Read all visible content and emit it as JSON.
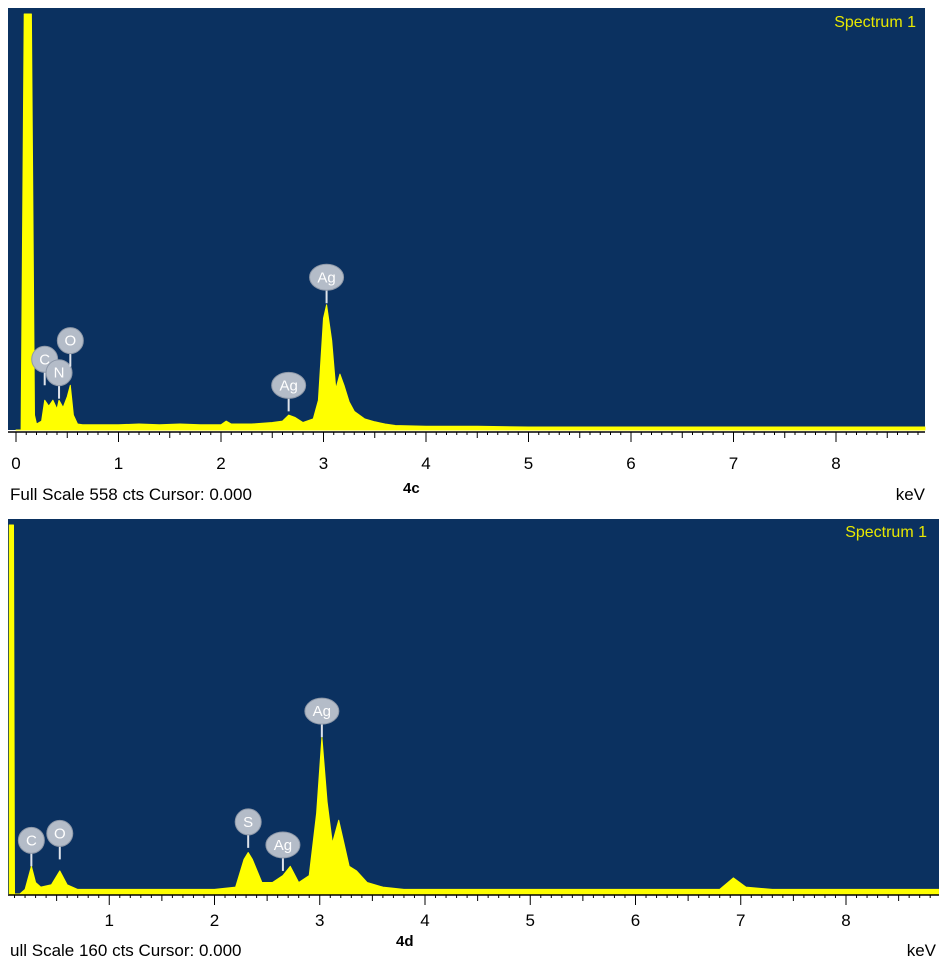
{
  "colors": {
    "plot_background": "#0b3160",
    "spectrum_fill": "#ffff00",
    "title_text": "#e8e800",
    "badge_fill": "#b4bcc8",
    "badge_text": "#ffffff",
    "axis_bg": "#ffffff"
  },
  "chart_data": [
    {
      "type": "area",
      "panel_id": "4c",
      "title": "Spectrum 1",
      "footer": "Full Scale 558 cts Cursor: 0.000",
      "xlabel": "keV",
      "xlim": [
        0,
        8.9
      ],
      "ylim": [
        0,
        558
      ],
      "x_ticks": [
        "0",
        "1",
        "2",
        "3",
        "4",
        "5",
        "6",
        "7",
        "8"
      ],
      "x": [
        0.0,
        0.05,
        0.08,
        0.1,
        0.12,
        0.15,
        0.18,
        0.2,
        0.25,
        0.28,
        0.32,
        0.36,
        0.4,
        0.42,
        0.46,
        0.5,
        0.53,
        0.56,
        0.6,
        0.65,
        0.7,
        0.8,
        1.0,
        1.2,
        1.4,
        1.6,
        1.8,
        2.0,
        2.05,
        2.1,
        2.3,
        2.5,
        2.6,
        2.66,
        2.72,
        2.8,
        2.9,
        2.95,
        3.0,
        3.03,
        3.08,
        3.12,
        3.16,
        3.2,
        3.25,
        3.3,
        3.4,
        3.5,
        3.6,
        3.7,
        4.0,
        4.5,
        5.0,
        5.5,
        6.0,
        6.5,
        7.0,
        7.5,
        8.0,
        8.5,
        8.9
      ],
      "values": [
        0,
        0,
        558,
        558,
        558,
        558,
        20,
        8,
        12,
        40,
        32,
        40,
        28,
        40,
        30,
        45,
        60,
        20,
        8,
        7,
        7,
        7,
        7,
        8,
        7,
        8,
        7,
        7,
        12,
        8,
        8,
        10,
        12,
        20,
        17,
        10,
        15,
        40,
        150,
        168,
        120,
        55,
        75,
        60,
        38,
        25,
        15,
        11,
        8,
        6,
        5,
        5,
        4,
        4,
        4,
        4,
        4,
        4,
        4,
        4,
        4
      ],
      "peak_labels": [
        {
          "label": "C",
          "energy": 0.28,
          "value": 60
        },
        {
          "label": "N",
          "energy": 0.42,
          "value": 42
        },
        {
          "label": "O",
          "energy": 0.53,
          "value": 85
        },
        {
          "label": "Ag",
          "energy": 2.66,
          "value": 25
        },
        {
          "label": "Ag",
          "energy": 3.03,
          "value": 170
        }
      ]
    },
    {
      "type": "area",
      "panel_id": "4d",
      "title": "Spectrum 1",
      "footer": "ull Scale 160 cts Cursor: 0.000",
      "xlabel": "keV",
      "xlim": [
        0.05,
        8.95
      ],
      "ylim": [
        0,
        160
      ],
      "x_ticks": [
        "1",
        "2",
        "3",
        "4",
        "5",
        "6",
        "7",
        "8"
      ],
      "x": [
        0.05,
        0.07,
        0.09,
        0.1,
        0.15,
        0.2,
        0.26,
        0.3,
        0.35,
        0.45,
        0.53,
        0.6,
        0.7,
        0.8,
        1.0,
        1.5,
        2.0,
        2.2,
        2.28,
        2.32,
        2.36,
        2.45,
        2.55,
        2.65,
        2.72,
        2.8,
        2.9,
        2.97,
        3.02,
        3.07,
        3.12,
        3.18,
        3.23,
        3.28,
        3.35,
        3.45,
        3.6,
        3.8,
        4.0,
        5.0,
        6.0,
        6.8,
        6.93,
        7.05,
        7.3,
        8.0,
        8.95
      ],
      "values": [
        160,
        160,
        160,
        0,
        0,
        2,
        12,
        5,
        3,
        4,
        10,
        4,
        2,
        2,
        2,
        2,
        2,
        3,
        15,
        18,
        15,
        5,
        5,
        8,
        12,
        5,
        8,
        35,
        68,
        40,
        22,
        32,
        22,
        12,
        10,
        5,
        3,
        2,
        2,
        2,
        2,
        2,
        7,
        3,
        2,
        2,
        2
      ],
      "peak_labels": [
        {
          "label": "C",
          "energy": 0.26,
          "value": 12
        },
        {
          "label": "O",
          "energy": 0.53,
          "value": 15
        },
        {
          "label": "S",
          "energy": 2.32,
          "value": 20
        },
        {
          "label": "Ag",
          "energy": 2.65,
          "value": 10
        },
        {
          "label": "Ag",
          "energy": 3.02,
          "value": 68
        }
      ]
    }
  ]
}
